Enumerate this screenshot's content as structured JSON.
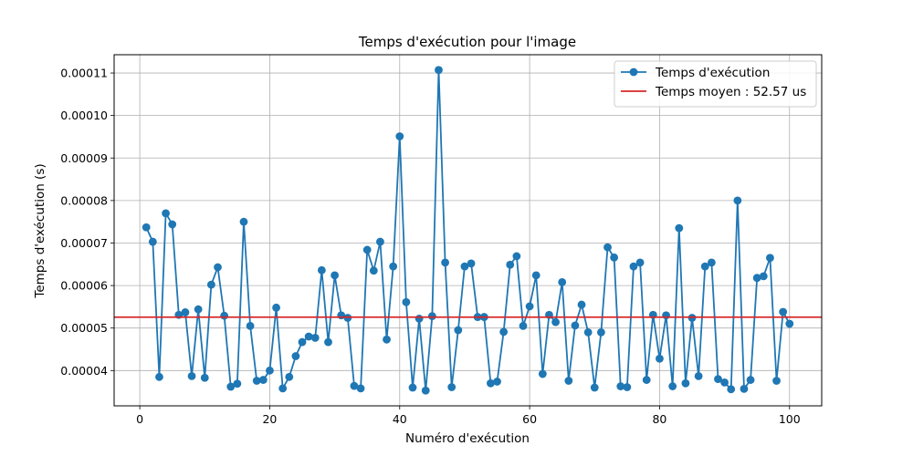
{
  "chart_data": {
    "type": "line",
    "title": "Temps d'exécution pour l'image",
    "xlabel": "Numéro d'exécution",
    "ylabel": "Temps d'exécution (s)",
    "xlim": [
      -3.95,
      104.95
    ],
    "ylim": [
      3.17e-05,
      0.0001143
    ],
    "x_ticks": [
      0,
      20,
      40,
      60,
      80,
      100
    ],
    "x_tick_labels": [
      "0",
      "20",
      "40",
      "60",
      "80",
      "100"
    ],
    "y_ticks": [
      4e-05,
      5e-05,
      6e-05,
      7e-05,
      8e-05,
      9e-05,
      0.0001,
      0.00011
    ],
    "y_tick_labels": [
      "0.00004",
      "0.00005",
      "0.00006",
      "0.00007",
      "0.00008",
      "0.00009",
      "0.00010",
      "0.00011"
    ],
    "grid": true,
    "legend_position": "top-right",
    "series": [
      {
        "name": "Temps d'exécution",
        "color": "#1f77b4",
        "marker": "circle",
        "x": [
          1,
          2,
          3,
          4,
          5,
          6,
          7,
          8,
          9,
          10,
          11,
          12,
          13,
          14,
          15,
          16,
          17,
          18,
          19,
          20,
          21,
          22,
          23,
          24,
          25,
          26,
          27,
          28,
          29,
          30,
          31,
          32,
          33,
          34,
          35,
          36,
          37,
          38,
          39,
          40,
          41,
          42,
          43,
          44,
          45,
          46,
          47,
          48,
          49,
          50,
          51,
          52,
          53,
          54,
          55,
          56,
          57,
          58,
          59,
          60,
          61,
          62,
          63,
          64,
          65,
          66,
          67,
          68,
          69,
          70,
          71,
          72,
          73,
          74,
          75,
          76,
          77,
          78,
          79,
          80,
          81,
          82,
          83,
          84,
          85,
          86,
          87,
          88,
          89,
          90,
          91,
          92,
          93,
          94,
          95,
          96,
          97,
          98,
          99,
          100
        ],
        "values": [
          7.37e-05,
          7.03e-05,
          3.85e-05,
          7.7e-05,
          7.44e-05,
          5.31e-05,
          5.37e-05,
          3.87e-05,
          5.44e-05,
          3.83e-05,
          6.02e-05,
          6.43e-05,
          5.29e-05,
          3.62e-05,
          3.69e-05,
          7.5e-05,
          5.05e-05,
          3.76e-05,
          3.78e-05,
          4e-05,
          5.48e-05,
          3.58e-05,
          3.85e-05,
          4.34e-05,
          4.67e-05,
          4.8e-05,
          4.77e-05,
          6.36e-05,
          4.67e-05,
          6.24e-05,
          5.3e-05,
          5.24e-05,
          3.64e-05,
          3.58e-05,
          6.84e-05,
          6.35e-05,
          7.03e-05,
          4.73e-05,
          6.45e-05,
          9.51e-05,
          5.61e-05,
          3.6e-05,
          5.22e-05,
          3.53e-05,
          5.28e-05,
          0.0001107,
          6.54e-05,
          3.61e-05,
          4.95e-05,
          6.45e-05,
          6.52e-05,
          5.26e-05,
          5.26e-05,
          3.7e-05,
          3.74e-05,
          4.91e-05,
          6.49e-05,
          6.69e-05,
          5.05e-05,
          5.51e-05,
          6.24e-05,
          3.92e-05,
          5.31e-05,
          5.14e-05,
          6.08e-05,
          3.76e-05,
          5.06e-05,
          5.55e-05,
          4.9e-05,
          3.6e-05,
          4.9e-05,
          6.9e-05,
          6.66e-05,
          3.63e-05,
          3.61e-05,
          6.45e-05,
          6.54e-05,
          3.78e-05,
          5.31e-05,
          4.28e-05,
          5.3e-05,
          3.63e-05,
          7.35e-05,
          3.7e-05,
          5.24e-05,
          3.87e-05,
          6.45e-05,
          6.54e-05,
          3.8e-05,
          3.72e-05,
          3.56e-05,
          8e-05,
          3.57e-05,
          3.78e-05,
          6.18e-05,
          6.22e-05,
          6.65e-05,
          3.76e-05,
          5.38e-05,
          5.1e-05
        ]
      },
      {
        "name": "Temps moyen : 52.57 us",
        "color": "#d62728",
        "type": "hline",
        "value": 5.257e-05
      }
    ]
  }
}
